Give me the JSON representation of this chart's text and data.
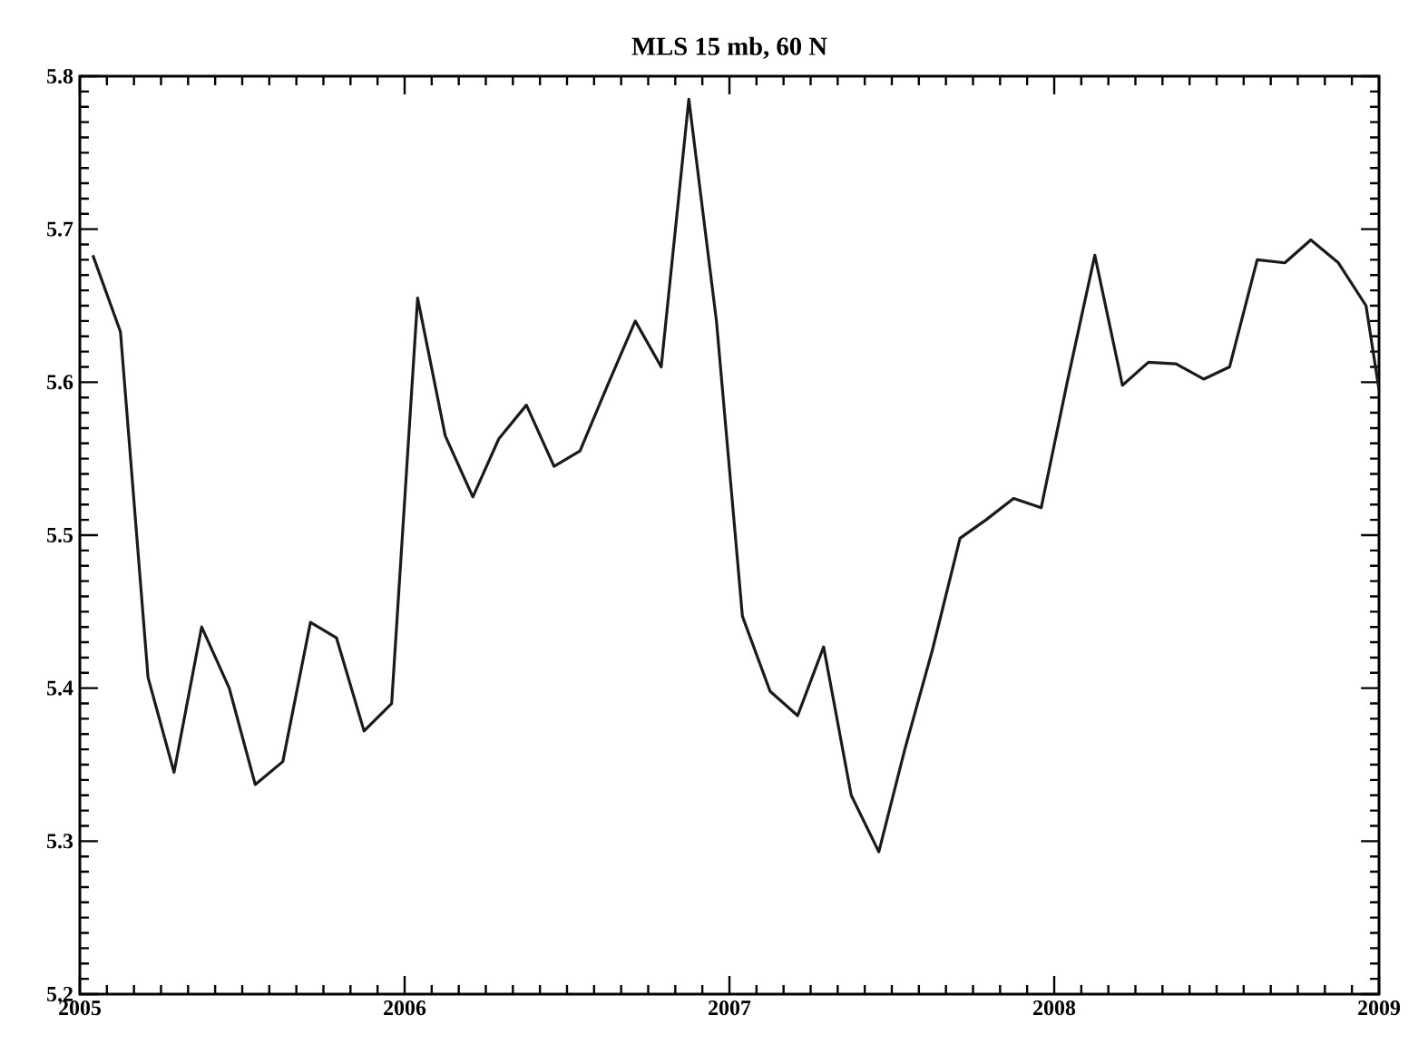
{
  "chart_data": {
    "type": "line",
    "title": "MLS 15 mb, 60 N",
    "x": [
      2005.04,
      2005.125,
      2005.21,
      2005.29,
      2005.375,
      2005.46,
      2005.54,
      2005.625,
      2005.71,
      2005.79,
      2005.875,
      2005.96,
      2006.04,
      2006.125,
      2006.21,
      2006.29,
      2006.375,
      2006.46,
      2006.54,
      2006.625,
      2006.71,
      2006.79,
      2006.875,
      2006.96,
      2007.04,
      2007.125,
      2007.21,
      2007.29,
      2007.375,
      2007.46,
      2007.54,
      2007.625,
      2007.71,
      2007.79,
      2007.875,
      2007.96,
      2008.04,
      2008.125,
      2008.21,
      2008.29,
      2008.375,
      2008.46,
      2008.54,
      2008.625,
      2008.71,
      2008.79,
      2008.875,
      2008.96,
      2009.0
    ],
    "series": [
      {
        "color": "#1a1a1a",
        "values": [
          5.683,
          5.633,
          5.407,
          5.345,
          5.44,
          5.4,
          5.337,
          5.352,
          5.443,
          5.433,
          5.372,
          5.39,
          5.655,
          5.565,
          5.525,
          5.563,
          5.585,
          5.545,
          5.555,
          5.598,
          5.64,
          5.61,
          5.785,
          5.64,
          5.447,
          5.398,
          5.382,
          5.427,
          5.33,
          5.293,
          5.36,
          5.425,
          5.498,
          5.51,
          5.524,
          5.518,
          5.6,
          5.683,
          5.598,
          5.613,
          5.612,
          5.602,
          5.61,
          5.68,
          5.678,
          5.693,
          5.678,
          5.65,
          5.595
        ]
      }
    ],
    "xlim": [
      2005,
      2009
    ],
    "xticks": [
      2005,
      2006,
      2007,
      2008,
      2009
    ],
    "ylim": [
      5.2,
      5.8
    ],
    "yticks": [
      5.2,
      5.3,
      5.4,
      5.5,
      5.6,
      5.7,
      5.8
    ],
    "marker": "none",
    "line_style": "solid"
  }
}
